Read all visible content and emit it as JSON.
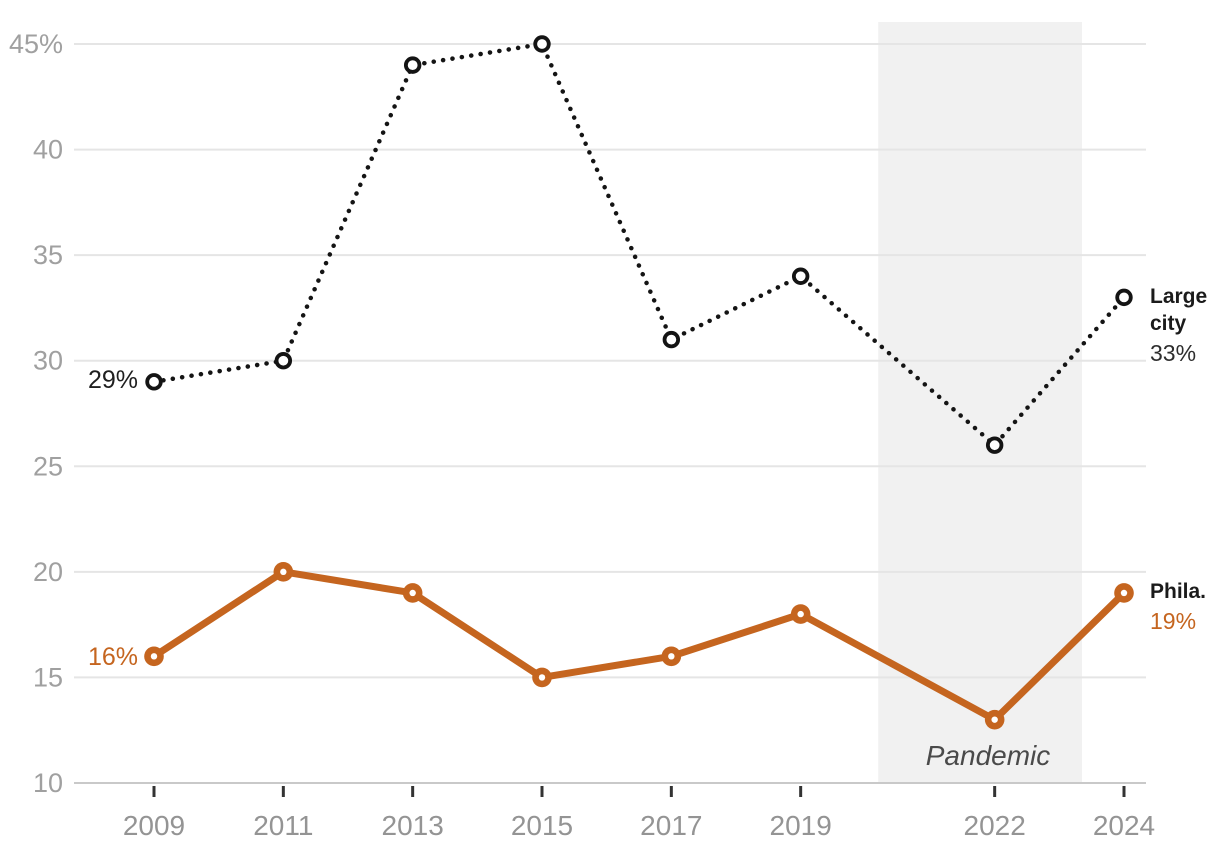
{
  "chart_data": {
    "type": "line",
    "title": "",
    "xlabel": "",
    "ylabel": "",
    "x": [
      2009,
      2011,
      2013,
      2015,
      2017,
      2019,
      2022,
      2024
    ],
    "xtick_labels": [
      "2009",
      "2011",
      "2013",
      "2015",
      "2017",
      "2019",
      "2022",
      "2024"
    ],
    "yticks": [
      10,
      15,
      20,
      25,
      30,
      35,
      40,
      45
    ],
    "ytick_labels": [
      "10",
      "15",
      "20",
      "25",
      "30",
      "35",
      "40",
      "45%"
    ],
    "ylim": [
      10,
      46
    ],
    "xlim": [
      2007.75,
      2024.35
    ],
    "grid": "horizontal",
    "legend_position": "end-of-line-labels",
    "series": [
      {
        "name": "Large city",
        "style": "dotted",
        "color": "#141414",
        "marker": "open-circle",
        "values": [
          29,
          30,
          44,
          45,
          31,
          34,
          26,
          33
        ]
      },
      {
        "name": "Phila.",
        "style": "solid",
        "color": "#c5651f",
        "marker": "donut-circle",
        "values": [
          16,
          20,
          19,
          15,
          16,
          18,
          13,
          19
        ]
      }
    ],
    "annotations": {
      "band": {
        "label": "Pandemic",
        "start_year": 2020.2,
        "end_year": 2023.35,
        "fill": "#f1f1f1"
      },
      "first_point_labels": [
        {
          "series": "Large city",
          "text": "29%"
        },
        {
          "series": "Phila.",
          "text": "16%"
        }
      ],
      "last_point_labels": [
        {
          "series": "Large city",
          "name_text": "Large city",
          "value_text": "33%"
        },
        {
          "series": "Phila.",
          "name_text": "Phila.",
          "value_text": "19%"
        }
      ]
    }
  },
  "colors": {
    "background": "#ffffff",
    "gridline": "#e5e5e5",
    "axis_line": "#c9c9c9",
    "axis_tick": "#333333",
    "y_tick_label": "#a0a0a0",
    "x_tick_label": "#949494",
    "dark_text": "#1f1f1f",
    "pandemic_text": "#4a4a4a"
  }
}
